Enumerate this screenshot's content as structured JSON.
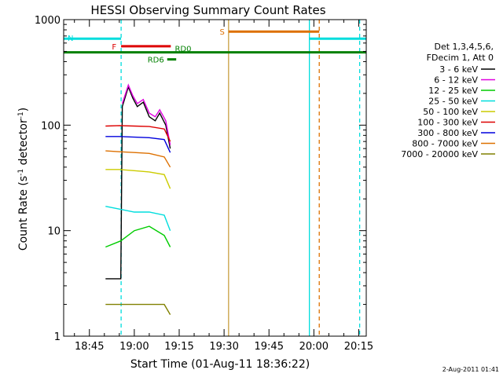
{
  "chart_data": {
    "type": "line",
    "title": "HESSI Observing Summary Count Rates",
    "xlabel": "Start Time (01-Aug-11 18:36:22)",
    "ylabel_main": "Count Rate (s",
    "ylabel_sup1": "-1",
    "ylabel_mid": " detector",
    "ylabel_sup2": "-1",
    "ylabel_end": ")",
    "y_scale": "log",
    "ylim": [
      1,
      1000
    ],
    "xlim_minutes": [
      36.4,
      137.5
    ],
    "x_ticks": [
      {
        "min": 45,
        "label": "18:45"
      },
      {
        "min": 60,
        "label": "19:00"
      },
      {
        "min": 75,
        "label": "19:15"
      },
      {
        "min": 90,
        "label": "19:30"
      },
      {
        "min": 105,
        "label": "19:45"
      },
      {
        "min": 120,
        "label": "20:00"
      },
      {
        "min": 135,
        "label": "20:15"
      }
    ],
    "y_ticks": [
      {
        "v": 1,
        "label": "1"
      },
      {
        "v": 10,
        "label": "10"
      },
      {
        "v": 100,
        "label": "100"
      },
      {
        "v": 1000,
        "label": "1000"
      }
    ],
    "legend_header": [
      "Det 1,3,4,5,6,",
      "FDecim 1, Att 0"
    ],
    "legend_position": "right",
    "series": [
      {
        "name": "3 - 6 keV",
        "color": "#000000",
        "x": [
          50.4,
          55.5,
          56,
          58,
          59.5,
          61,
          63,
          65,
          67,
          68.5,
          70.5,
          72
        ],
        "y": [
          3.5,
          3.5,
          150,
          230,
          180,
          150,
          165,
          120,
          110,
          130,
          100,
          60
        ]
      },
      {
        "name": "6 - 12 keV",
        "color": "#e000e0",
        "x": [
          56,
          58,
          59.5,
          61,
          63,
          65,
          67,
          68.5,
          70.5,
          72
        ],
        "y": [
          160,
          240,
          190,
          160,
          175,
          130,
          120,
          140,
          110,
          65
        ]
      },
      {
        "name": "12 - 25 keV",
        "color": "#00cc00",
        "x": [
          50.4,
          55.5,
          60,
          65,
          70,
          72
        ],
        "y": [
          7,
          8,
          10,
          11,
          9,
          7
        ]
      },
      {
        "name": "25 - 50 keV",
        "color": "#00dddd",
        "x": [
          50.4,
          55,
          60,
          65,
          70,
          72
        ],
        "y": [
          17,
          16,
          15,
          15,
          14,
          10
        ]
      },
      {
        "name": "50 - 100 keV",
        "color": "#cccc00",
        "x": [
          50.4,
          55,
          60,
          65,
          70,
          72
        ],
        "y": [
          38,
          38,
          37,
          36,
          34,
          25
        ]
      },
      {
        "name": "100 - 300 keV",
        "color": "#dd0000",
        "x": [
          50.4,
          55,
          60,
          65,
          70,
          72
        ],
        "y": [
          98,
          99,
          98,
          97,
          92,
          70
        ]
      },
      {
        "name": "300 - 800 keV",
        "color": "#0000dd",
        "x": [
          50.4,
          55,
          60,
          65,
          70,
          72
        ],
        "y": [
          78,
          78,
          77,
          76,
          73,
          55
        ]
      },
      {
        "name": "800 - 7000 keV",
        "color": "#dd7000",
        "x": [
          50.4,
          55,
          60,
          65,
          70,
          72
        ],
        "y": [
          57,
          56,
          55,
          54,
          50,
          40
        ]
      },
      {
        "name": "7000 - 20000 keV",
        "color": "#808000",
        "x": [
          50.4,
          55,
          60,
          65,
          70,
          72
        ],
        "y": [
          2,
          2,
          2,
          2,
          2,
          1.6
        ]
      }
    ],
    "flags": [
      {
        "label": "N",
        "color": "#00dddd",
        "segments": [
          [
            36.4,
            55.6
          ],
          [
            118.5,
            137.5
          ]
        ],
        "level": 660
      },
      {
        "label": "F",
        "color": "#dd0000",
        "segments": [
          [
            55.6,
            72.2
          ]
        ],
        "level": 560
      },
      {
        "label": "RD0",
        "color": "#008000",
        "segments": [
          [
            36.4,
            137.5
          ]
        ],
        "level": 490
      },
      {
        "label": "RD6",
        "color": "#008000",
        "segments": [
          [
            71,
            74
          ]
        ],
        "level": 420
      },
      {
        "label": "S",
        "color": "#dd7000",
        "segments": [
          [
            91.5,
            121.8
          ]
        ],
        "level": 770
      }
    ],
    "vertical_lines": [
      {
        "min": 55.6,
        "color": "#00dddd",
        "style": "dashed"
      },
      {
        "min": 91.5,
        "color": "#c8a040",
        "style": "solid"
      },
      {
        "min": 118.5,
        "color": "#00dddd",
        "style": "solid"
      },
      {
        "min": 121.8,
        "color": "#dd7000",
        "style": "dashed"
      },
      {
        "min": 135.3,
        "color": "#00dddd",
        "style": "dashed"
      }
    ],
    "footer_date": "2-Aug-2011 01:41"
  }
}
